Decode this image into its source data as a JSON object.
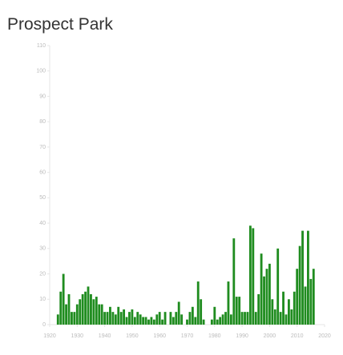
{
  "chart_data": {
    "type": "bar",
    "title": "Prospect Park",
    "x": [
      1923,
      1924,
      1925,
      1926,
      1927,
      1928,
      1929,
      1930,
      1931,
      1932,
      1933,
      1934,
      1935,
      1936,
      1937,
      1938,
      1939,
      1940,
      1941,
      1942,
      1943,
      1944,
      1945,
      1946,
      1947,
      1948,
      1949,
      1950,
      1951,
      1952,
      1953,
      1954,
      1955,
      1956,
      1957,
      1958,
      1959,
      1960,
      1961,
      1962,
      1963,
      1964,
      1965,
      1966,
      1967,
      1968,
      1969,
      1970,
      1971,
      1972,
      1973,
      1974,
      1975,
      1976,
      1977,
      1978,
      1979,
      1980,
      1981,
      1982,
      1983,
      1984,
      1985,
      1986,
      1987,
      1988,
      1989,
      1990,
      1991,
      1992,
      1993,
      1994,
      1995,
      1996,
      1997,
      1998,
      1999,
      2000,
      2001,
      2002,
      2003,
      2004,
      2005,
      2006,
      2007,
      2008,
      2009,
      2010,
      2011,
      2012,
      2013,
      2014,
      2015,
      2016
    ],
    "values": [
      4,
      13,
      20,
      8,
      12,
      5,
      5,
      8,
      10,
      12,
      13,
      15,
      12,
      10,
      11,
      8,
      8,
      5,
      5,
      7,
      5,
      4,
      7,
      5,
      6,
      3,
      5,
      6,
      3,
      5,
      4,
      3,
      3,
      2,
      3,
      2,
      4,
      5,
      2,
      5,
      0,
      5,
      3,
      5,
      9,
      4,
      0,
      2,
      5,
      7,
      3,
      17,
      10,
      2,
      0,
      0,
      2,
      7,
      2,
      3,
      4,
      5,
      17,
      4,
      34,
      11,
      11,
      5,
      5,
      5,
      39,
      38,
      5,
      12,
      28,
      19,
      22,
      24,
      10,
      6,
      30,
      5,
      13,
      4,
      10,
      6,
      13,
      22,
      31,
      37,
      15,
      37,
      18,
      22
    ],
    "color": "#1f8c1f",
    "xlim": [
      1920,
      2020
    ],
    "xticks": [
      1920,
      1930,
      1940,
      1950,
      1960,
      1970,
      1980,
      1990,
      2000,
      2010,
      2020
    ],
    "ylim": [
      0,
      110
    ],
    "yticks": [
      0,
      10,
      20,
      30,
      40,
      50,
      60,
      70,
      80,
      90,
      100,
      110
    ]
  }
}
